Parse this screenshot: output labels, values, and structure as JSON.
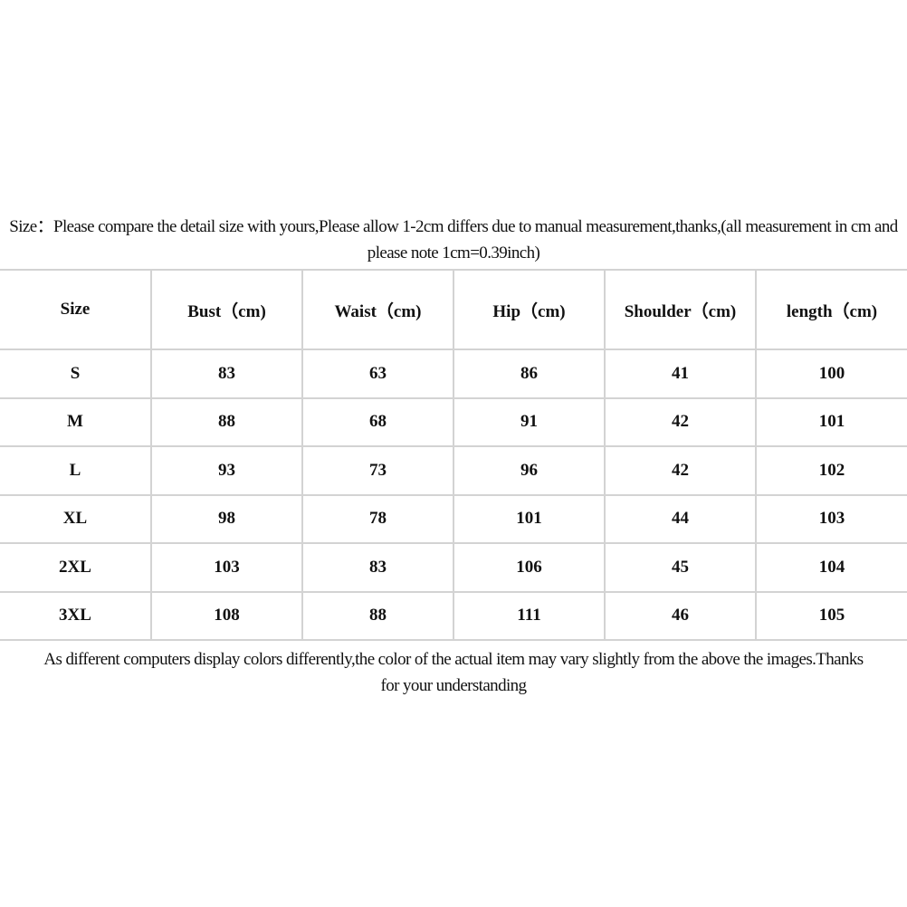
{
  "top_note": "Size：Please compare the detail size with yours,Please allow 1-2cm differs due to manual measurement,thanks,(all measurement in cm and please note 1cm=0.39inch)",
  "table": {
    "headers": [
      "Size",
      "Bust（cm)",
      "Waist（cm)",
      "Hip（cm)",
      "Shoulder（cm)",
      "length（cm)"
    ],
    "rows": [
      [
        "S",
        "83",
        "63",
        "86",
        "41",
        "100"
      ],
      [
        "M",
        "88",
        "68",
        "91",
        "42",
        "101"
      ],
      [
        "L",
        "93",
        "73",
        "96",
        "42",
        "102"
      ],
      [
        "XL",
        "98",
        "78",
        "101",
        "44",
        "103"
      ],
      [
        "2XL",
        "103",
        "83",
        "106",
        "45",
        "104"
      ],
      [
        "3XL",
        "108",
        "88",
        "111",
        "46",
        "105"
      ]
    ]
  },
  "bottom_note": "As different computers display colors differently,the color of the actual item may vary slightly from the above the images.Thanks for your understanding"
}
